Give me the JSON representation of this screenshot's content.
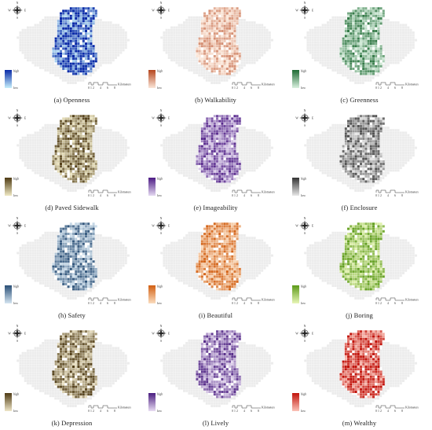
{
  "legend": {
    "high": "high",
    "low": "low"
  },
  "compass": {
    "n": "N",
    "s": "S",
    "e": "E",
    "w": "W"
  },
  "scale": {
    "ticks": [
      "0",
      "1",
      "2",
      "4",
      "6",
      "8"
    ],
    "unit": "Kilometers"
  },
  "panels": [
    {
      "caption": "(a) Openness",
      "color_high": "#0a2ba8",
      "color_low": "#c7f0fb",
      "intensity": 0.85
    },
    {
      "caption": "(b) Walkability",
      "color_high": "#b5461e",
      "color_low": "#fbe6d8",
      "intensity": 0.25
    },
    {
      "caption": "(c) Greenness",
      "color_high": "#1f6b34",
      "color_low": "#d9f0df",
      "intensity": 0.55
    },
    {
      "caption": "(d) Paved Sidewalk",
      "color_high": "#4f3b14",
      "color_low": "#f0e9c4",
      "intensity": 0.6
    },
    {
      "caption": "(e) Imageability",
      "color_high": "#4c1a84",
      "color_low": "#e4d9f1",
      "intensity": 0.55
    },
    {
      "caption": "(f) Enclosure",
      "color_high": "#333333",
      "color_low": "#e8e8e8",
      "intensity": 0.5
    },
    {
      "caption": "(h) Safety",
      "color_high": "#2a4f76",
      "color_low": "#d5e5f1",
      "intensity": 0.6
    },
    {
      "caption": "(i) Beautiful",
      "color_high": "#d25f12",
      "color_low": "#fbdcbe",
      "intensity": 0.6
    },
    {
      "caption": "(j) Boring",
      "color_high": "#5c9a19",
      "color_low": "#e8f6b7",
      "intensity": 0.6
    },
    {
      "caption": "(k) Depression",
      "color_high": "#4f3b14",
      "color_low": "#efe6c8",
      "intensity": 0.6
    },
    {
      "caption": "(l) Lively",
      "color_high": "#4a1d80",
      "color_low": "#e8dcf2",
      "intensity": 0.55
    },
    {
      "caption": "(m) Wealthy",
      "color_high": "#c2140c",
      "color_low": "#fbc3b8",
      "intensity": 0.7
    }
  ]
}
